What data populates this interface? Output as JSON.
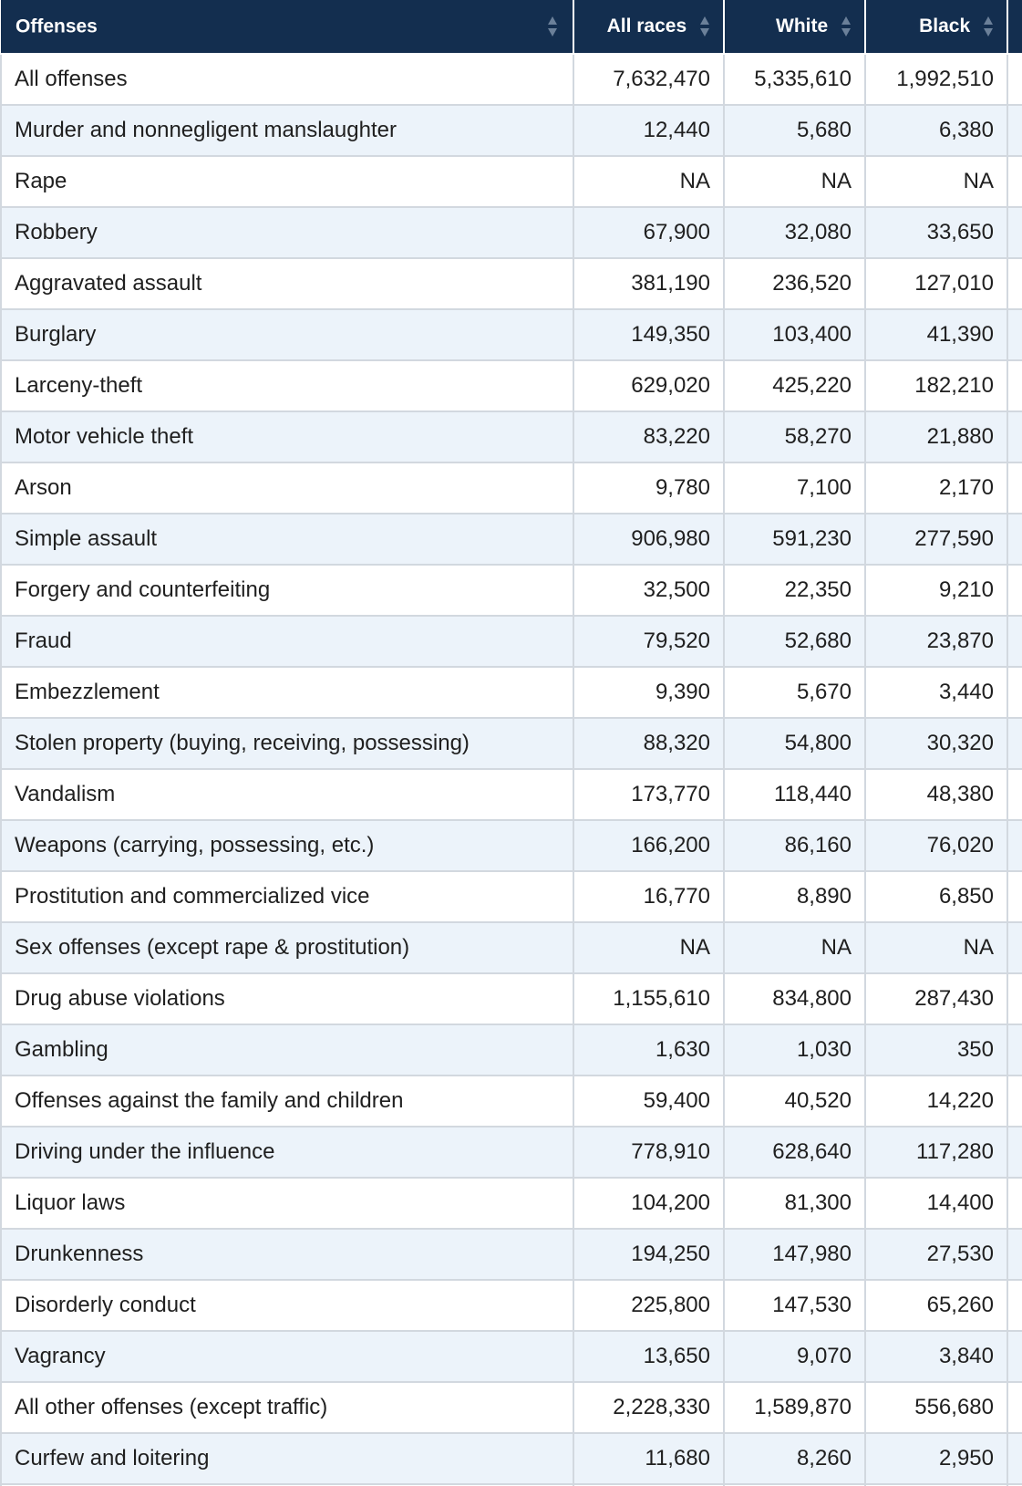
{
  "table": {
    "headers": {
      "offenses": "Offenses",
      "all_races": "All races",
      "white": "White",
      "black": "Black"
    },
    "rows": [
      {
        "offense": "All offenses",
        "all": "7,632,470",
        "white": "5,335,610",
        "black": "1,992,510"
      },
      {
        "offense": "Murder and nonnegligent manslaughter",
        "all": "12,440",
        "white": "5,680",
        "black": "6,380"
      },
      {
        "offense": "Rape",
        "all": "NA",
        "white": "NA",
        "black": "NA"
      },
      {
        "offense": "Robbery",
        "all": "67,900",
        "white": "32,080",
        "black": "33,650"
      },
      {
        "offense": "Aggravated assault",
        "all": "381,190",
        "white": "236,520",
        "black": "127,010"
      },
      {
        "offense": "Burglary",
        "all": "149,350",
        "white": "103,400",
        "black": "41,390"
      },
      {
        "offense": "Larceny-theft",
        "all": "629,020",
        "white": "425,220",
        "black": "182,210"
      },
      {
        "offense": "Motor vehicle theft",
        "all": "83,220",
        "white": "58,270",
        "black": "21,880"
      },
      {
        "offense": "Arson",
        "all": "9,780",
        "white": "7,100",
        "black": "2,170"
      },
      {
        "offense": "Simple assault",
        "all": "906,980",
        "white": "591,230",
        "black": "277,590"
      },
      {
        "offense": "Forgery and counterfeiting",
        "all": "32,500",
        "white": "22,350",
        "black": "9,210"
      },
      {
        "offense": "Fraud",
        "all": "79,520",
        "white": "52,680",
        "black": "23,870"
      },
      {
        "offense": "Embezzlement",
        "all": "9,390",
        "white": "5,670",
        "black": "3,440"
      },
      {
        "offense": "Stolen property (buying, receiving, possessing)",
        "all": "88,320",
        "white": "54,800",
        "black": "30,320"
      },
      {
        "offense": "Vandalism",
        "all": "173,770",
        "white": "118,440",
        "black": "48,380"
      },
      {
        "offense": "Weapons (carrying, possessing, etc.)",
        "all": "166,200",
        "white": "86,160",
        "black": "76,020"
      },
      {
        "offense": "Prostitution and commercialized vice",
        "all": "16,770",
        "white": "8,890",
        "black": "6,850"
      },
      {
        "offense": "Sex offenses (except rape & prostitution)",
        "all": "NA",
        "white": "NA",
        "black": "NA"
      },
      {
        "offense": "Drug abuse violations",
        "all": "1,155,610",
        "white": "834,800",
        "black": "287,430"
      },
      {
        "offense": "Gambling",
        "all": "1,630",
        "white": "1,030",
        "black": "350"
      },
      {
        "offense": "Offenses against the family and children",
        "all": "59,400",
        "white": "40,520",
        "black": "14,220"
      },
      {
        "offense": "Driving under the influence",
        "all": "778,910",
        "white": "628,640",
        "black": "117,280"
      },
      {
        "offense": "Liquor laws",
        "all": "104,200",
        "white": "81,300",
        "black": "14,400"
      },
      {
        "offense": "Drunkenness",
        "all": "194,250",
        "white": "147,980",
        "black": "27,530"
      },
      {
        "offense": "Disorderly conduct",
        "all": "225,800",
        "white": "147,530",
        "black": "65,260"
      },
      {
        "offense": "Vagrancy",
        "all": "13,650",
        "white": "9,070",
        "black": "3,840"
      },
      {
        "offense": "All other offenses (except traffic)",
        "all": "2,228,330",
        "white": "1,589,870",
        "black": "556,680"
      },
      {
        "offense": "Curfew and loitering",
        "all": "11,680",
        "white": "8,260",
        "black": "2,950"
      },
      {
        "offense": "",
        "all": "",
        "white": "",
        "black": ""
      }
    ]
  },
  "colors": {
    "header_bg": "#132e4f",
    "row_alt_bg": "#ecf3fa",
    "border": "#d2d8df"
  }
}
